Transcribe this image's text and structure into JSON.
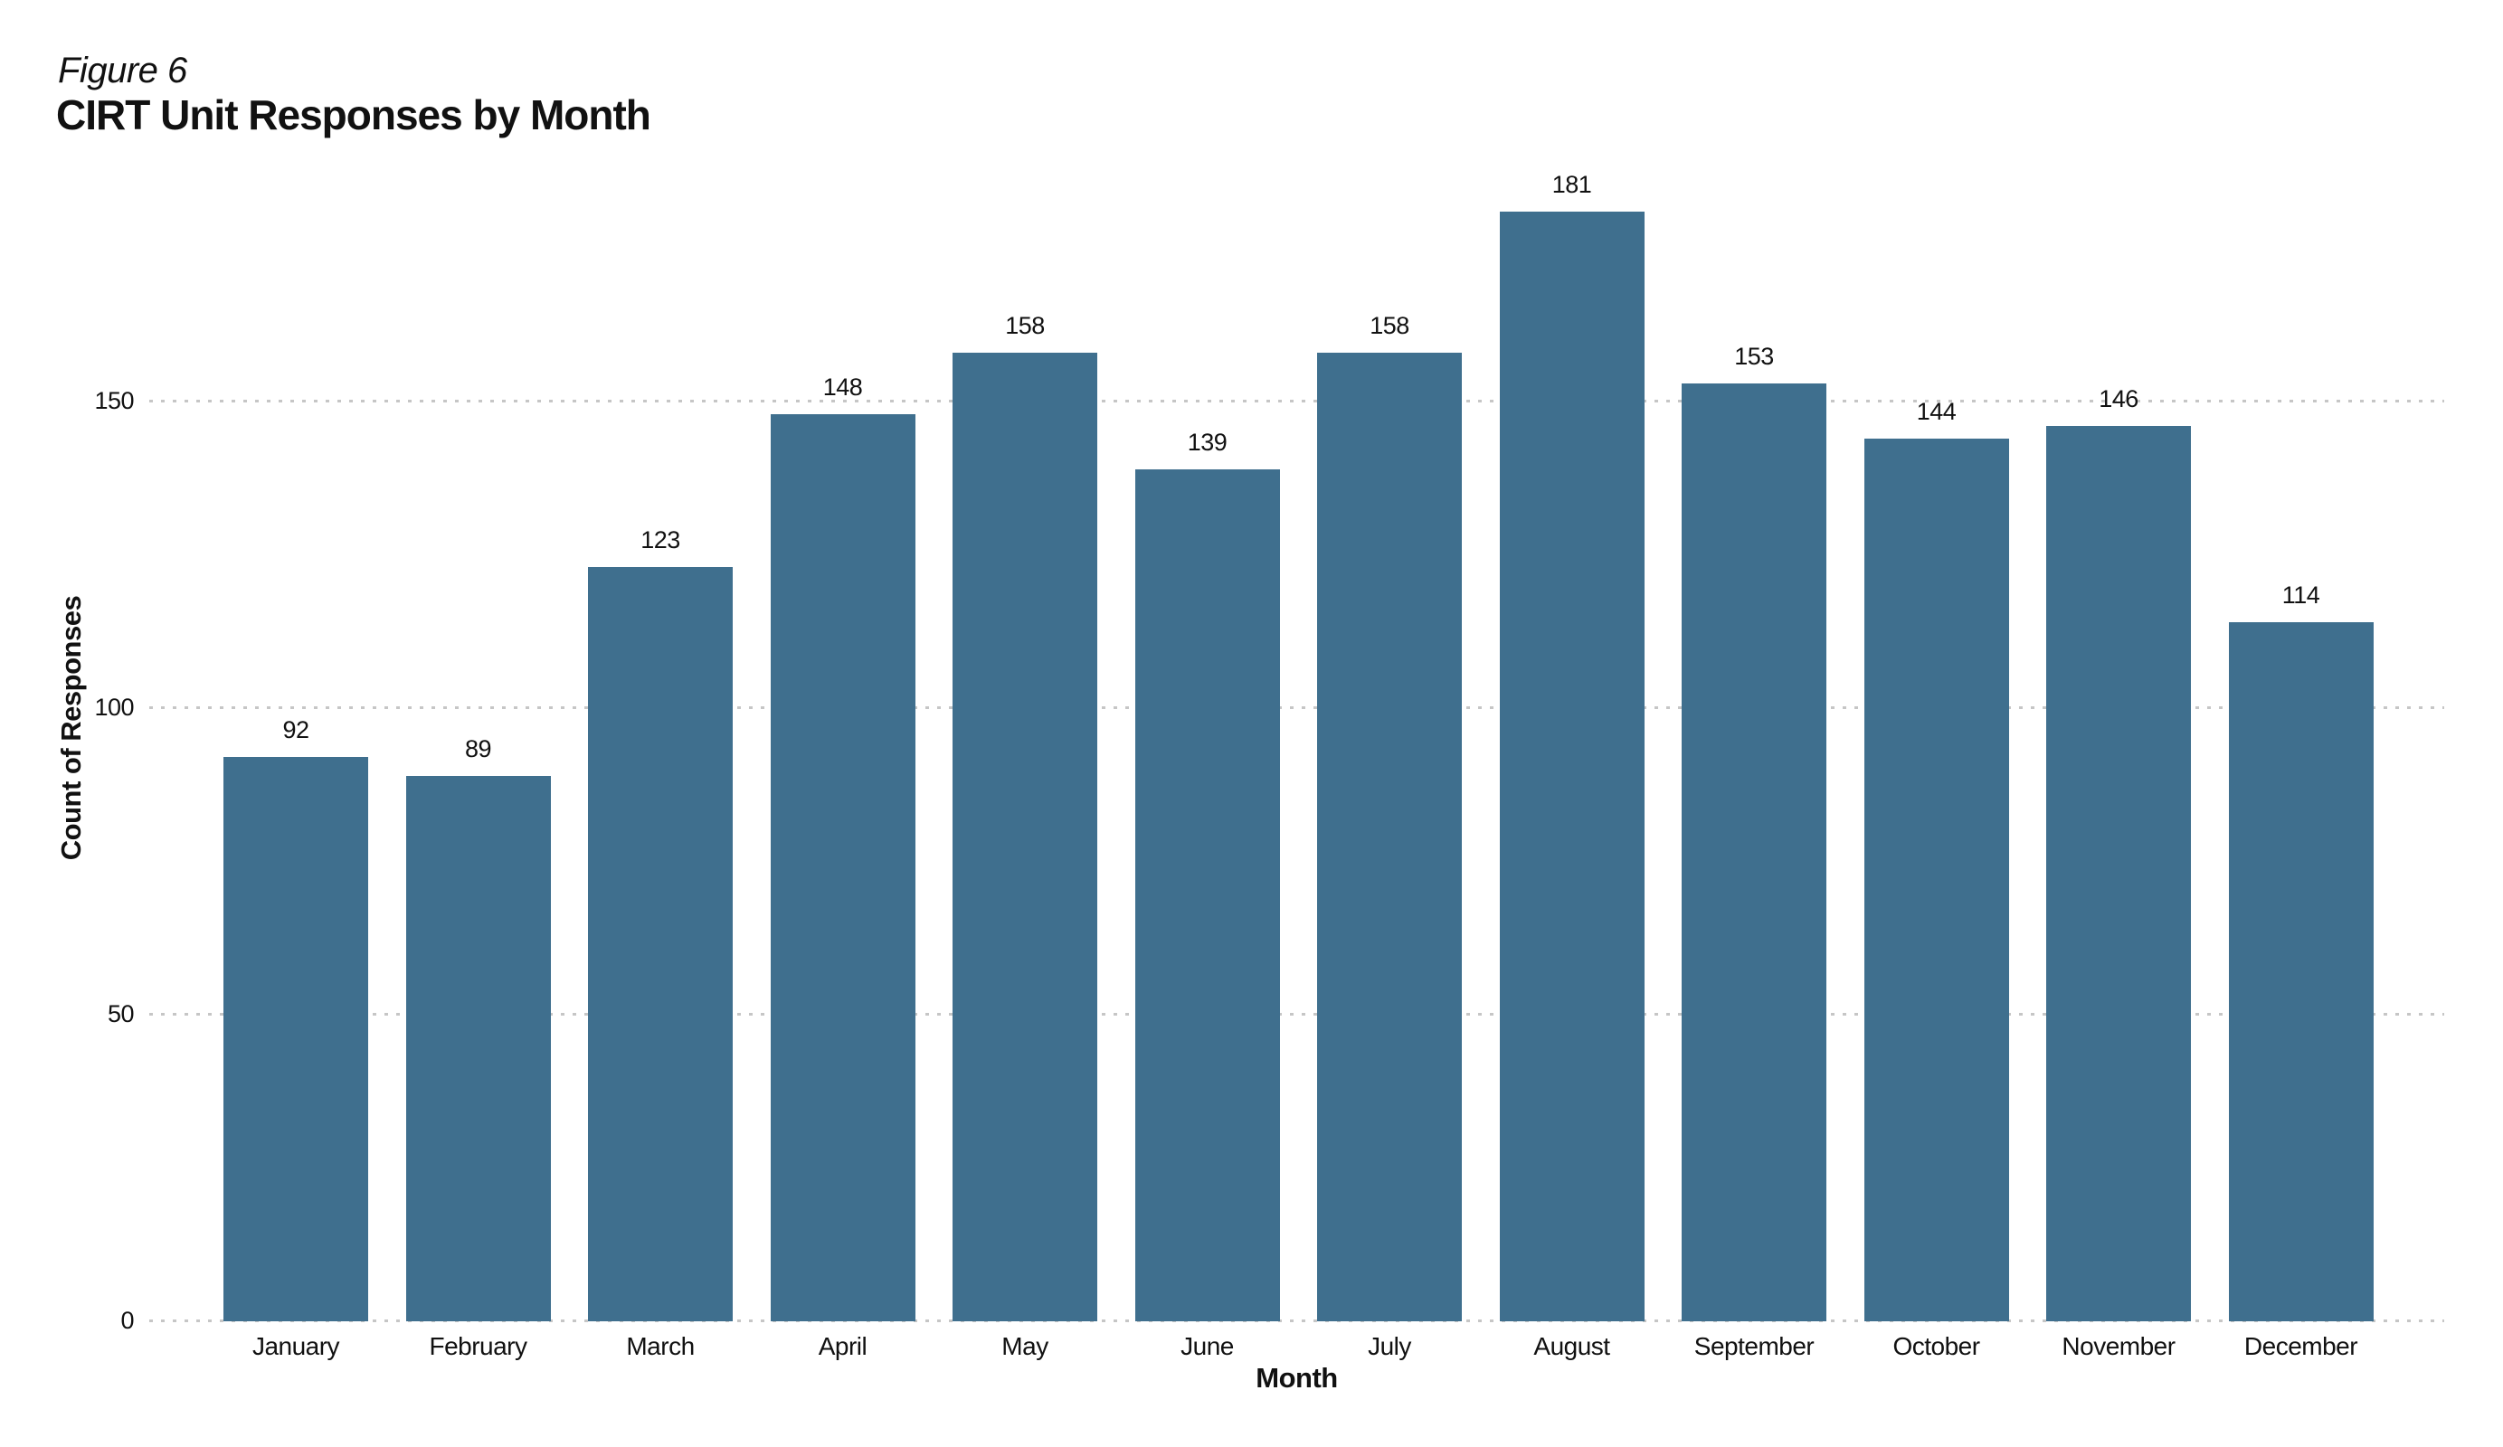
{
  "figure_label": "Figure 6",
  "chart_data": {
    "type": "bar",
    "title": "CIRT Unit Responses by Month",
    "xlabel": "Month",
    "ylabel": "Count of Responses",
    "categories": [
      "January",
      "February",
      "March",
      "April",
      "May",
      "June",
      "July",
      "August",
      "September",
      "October",
      "November",
      "December"
    ],
    "values": [
      92,
      89,
      123,
      148,
      158,
      139,
      158,
      181,
      153,
      144,
      146,
      114
    ],
    "yticks": [
      0,
      50,
      100,
      150
    ],
    "ylim": [
      0,
      190
    ],
    "data_labels": true,
    "legend": "none",
    "grid": "horizontal-dotted",
    "bar_color": "#3F6F8E",
    "grid_color": "#C6C6C6",
    "text_color": "#111111"
  }
}
